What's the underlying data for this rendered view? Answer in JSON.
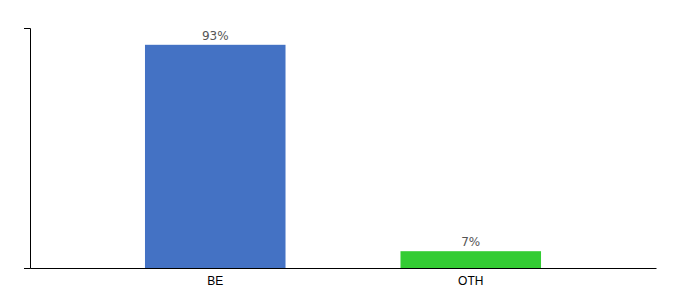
{
  "chart_data": {
    "type": "bar",
    "categories": [
      "BE",
      "OTH"
    ],
    "values": [
      93,
      7
    ],
    "value_labels": [
      "93%",
      "7%"
    ],
    "colors": [
      "#4472c4",
      "#33cc33"
    ],
    "ylim": [
      0,
      100
    ],
    "data_labels": true,
    "tick_labels": "x",
    "grid": false
  }
}
